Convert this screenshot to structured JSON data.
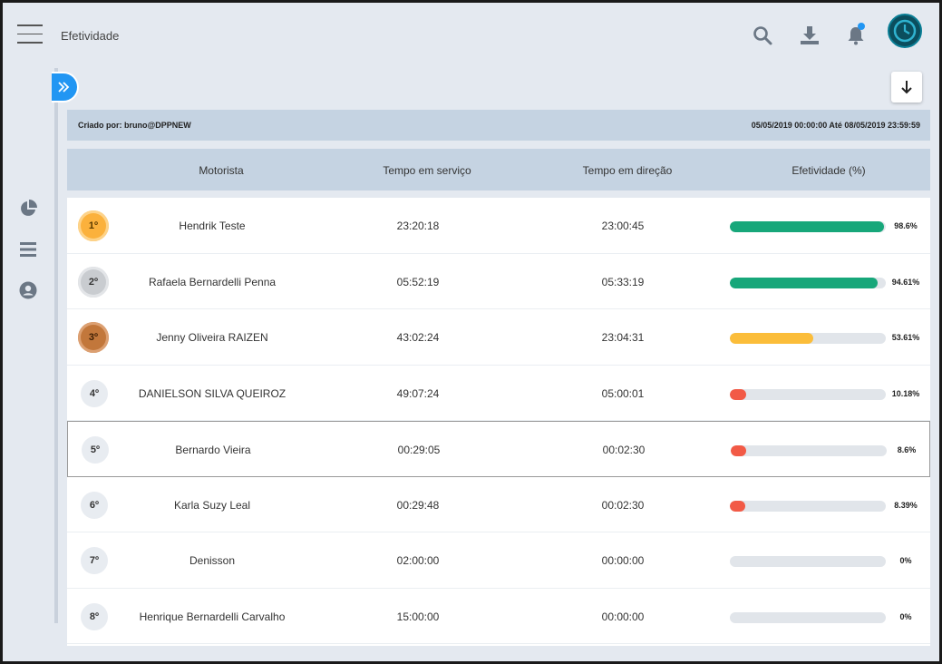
{
  "header": {
    "title": "Efetividade"
  },
  "info": {
    "created_by": "Criado por: bruno@DPPNEW",
    "period": "05/05/2019 00:00:00 Até 08/05/2019 23:59:59"
  },
  "columns": [
    "Motorista",
    "Tempo em serviço",
    "Tempo em direção",
    "Efetividade (%)"
  ],
  "rows": [
    {
      "rank": "1º",
      "name": "Hendrik Teste",
      "service": "23:20:18",
      "driving": "23:00:45",
      "pct": "98.6%",
      "value": 0.986,
      "medal": "gold"
    },
    {
      "rank": "2º",
      "name": "Rafaela Bernardelli Penna",
      "service": "05:52:19",
      "driving": "05:33:19",
      "pct": "94.61%",
      "value": 0.9461,
      "medal": "silver"
    },
    {
      "rank": "3º",
      "name": "Jenny Oliveira RAIZEN",
      "service": "43:02:24",
      "driving": "23:04:31",
      "pct": "53.61%",
      "value": 0.5361,
      "medal": "bronze"
    },
    {
      "rank": "4º",
      "name": "DANIELSON SILVA QUEIROZ",
      "service": "49:07:24",
      "driving": "05:00:01",
      "pct": "10.18%",
      "value": 0.1018,
      "medal": ""
    },
    {
      "rank": "5º",
      "name": "Bernardo Vieira",
      "service": "00:29:05",
      "driving": "00:02:30",
      "pct": "8.6%",
      "value": 0.086,
      "medal": ""
    },
    {
      "rank": "6º",
      "name": "Karla Suzy Leal",
      "service": "00:29:48",
      "driving": "00:02:30",
      "pct": "8.39%",
      "value": 0.0839,
      "medal": ""
    },
    {
      "rank": "7º",
      "name": "Denisson",
      "service": "02:00:00",
      "driving": "00:00:00",
      "pct": "0%",
      "value": 0,
      "medal": ""
    },
    {
      "rank": "8º",
      "name": "Henrique Bernardelli Carvalho",
      "service": "15:00:00",
      "driving": "00:00:00",
      "pct": "0%",
      "value": 0,
      "medal": ""
    }
  ],
  "colors": {
    "high": "#17a77a",
    "mid": "#fbbd3a",
    "low": "#f25a46",
    "accent": "#2196f3",
    "gold": "#fbb13c",
    "silver": "#c9ccd0",
    "bronze": "#c2773b"
  },
  "icons": {
    "menu": "hamburger-icon",
    "search": "search-icon",
    "download": "download-icon",
    "notifications": "bell-icon",
    "side": [
      "pie-chart-icon",
      "list-icon",
      "user-circle-icon"
    ],
    "export": "arrow-down-icon",
    "expand": "double-chevron-right-icon"
  }
}
